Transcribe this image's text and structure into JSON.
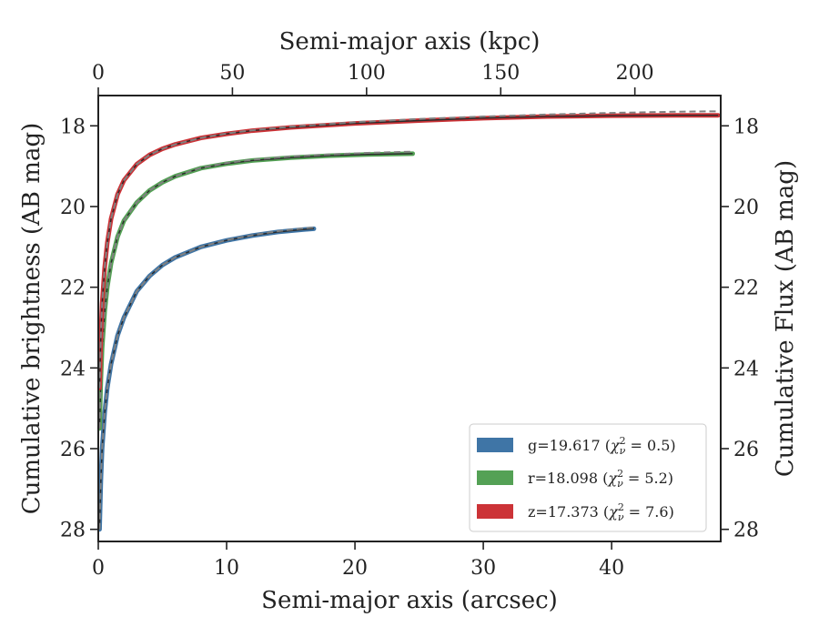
{
  "chart_data": {
    "type": "line",
    "xlabel": "Semi-major axis (arcsec)",
    "ylabel": "Cumulative brightness (AB mag)",
    "top_xlabel": "Semi-major axis (kpc)",
    "right_ylabel": "Cumulative Flux (AB mag)",
    "xlim": [
      0,
      48.5
    ],
    "ylim": [
      28.3,
      17.25
    ],
    "y_inverted": true,
    "top_xlim": [
      0,
      232
    ],
    "xticks": [
      "0",
      "10",
      "20",
      "30",
      "40"
    ],
    "top_xticks": [
      "0",
      "50",
      "100",
      "150",
      "200"
    ],
    "yticks": [
      "18",
      "20",
      "22",
      "24",
      "26",
      "28"
    ],
    "right_yticks": [
      "18",
      "20",
      "22",
      "24",
      "26",
      "28"
    ],
    "legend_position": "lower-right",
    "series": [
      {
        "name": "g=19.617 (χ²ᵥ = 0.5)",
        "label_main": "g=19.617 (",
        "label_chi": "χ",
        "label_sup": "2",
        "label_sub": "ν",
        "label_rest": " = 0.5)",
        "color": "#3f75a6",
        "x": [
          0.1,
          0.2,
          0.3,
          0.5,
          0.7,
          1.0,
          1.5,
          2.0,
          3.0,
          4.0,
          5.0,
          6.0,
          8.0,
          10.0,
          12.0,
          14.0,
          16.0,
          16.8
        ],
        "y": [
          28.0,
          26.8,
          26.0,
          25.1,
          24.5,
          23.9,
          23.2,
          22.75,
          22.1,
          21.72,
          21.45,
          21.26,
          21.0,
          20.84,
          20.72,
          20.63,
          20.57,
          20.55
        ],
        "fit_y": [
          28.0,
          26.8,
          26.0,
          25.1,
          24.5,
          23.9,
          23.2,
          22.75,
          22.1,
          21.72,
          21.45,
          21.26,
          21.0,
          20.83,
          20.71,
          20.61,
          20.54,
          20.52
        ]
      },
      {
        "name": "r=18.098 (χ²ᵥ = 5.2)",
        "label_main": "r=18.098 (",
        "label_chi": "χ",
        "label_sup": "2",
        "label_sub": "ν",
        "label_rest": " = 5.2)",
        "color": "#54a155",
        "x": [
          0.1,
          0.2,
          0.3,
          0.5,
          0.7,
          1.0,
          1.5,
          2.0,
          3.0,
          4.0,
          5.0,
          6.0,
          8.0,
          10.0,
          12.0,
          15.0,
          18.0,
          21.0,
          24.5
        ],
        "y": [
          25.5,
          24.3,
          23.5,
          22.6,
          22.0,
          21.4,
          20.75,
          20.35,
          19.9,
          19.6,
          19.4,
          19.25,
          19.05,
          18.94,
          18.86,
          18.79,
          18.74,
          18.71,
          18.69
        ],
        "fit_y": [
          25.5,
          24.3,
          23.5,
          22.6,
          22.0,
          21.4,
          20.75,
          20.35,
          19.9,
          19.6,
          19.4,
          19.25,
          19.04,
          18.92,
          18.84,
          18.76,
          18.71,
          18.67,
          18.64
        ]
      },
      {
        "name": "z=17.373 (χ²ᵥ = 7.6)",
        "label_main": "z=17.373 (",
        "label_chi": "χ",
        "label_sup": "2",
        "label_sub": "ν",
        "label_rest": " = 7.6)",
        "color": "#cc3337",
        "x": [
          0.1,
          0.2,
          0.3,
          0.5,
          0.7,
          1.0,
          1.5,
          2.0,
          3.0,
          4.0,
          5.0,
          6.0,
          8.0,
          10.0,
          12.0,
          15.0,
          20.0,
          25.0,
          30.0,
          35.0,
          40.0,
          45.0,
          48.3
        ],
        "y": [
          24.5,
          23.2,
          22.4,
          21.5,
          20.9,
          20.3,
          19.7,
          19.35,
          18.95,
          18.72,
          18.57,
          18.46,
          18.3,
          18.2,
          18.12,
          18.04,
          17.94,
          17.87,
          17.81,
          17.77,
          17.75,
          17.74,
          17.74
        ],
        "fit_y": [
          24.5,
          23.2,
          22.4,
          21.5,
          20.9,
          20.3,
          19.7,
          19.35,
          18.95,
          18.72,
          18.57,
          18.46,
          18.3,
          18.19,
          18.11,
          18.02,
          17.91,
          17.83,
          17.77,
          17.72,
          17.68,
          17.65,
          17.64
        ]
      }
    ]
  }
}
